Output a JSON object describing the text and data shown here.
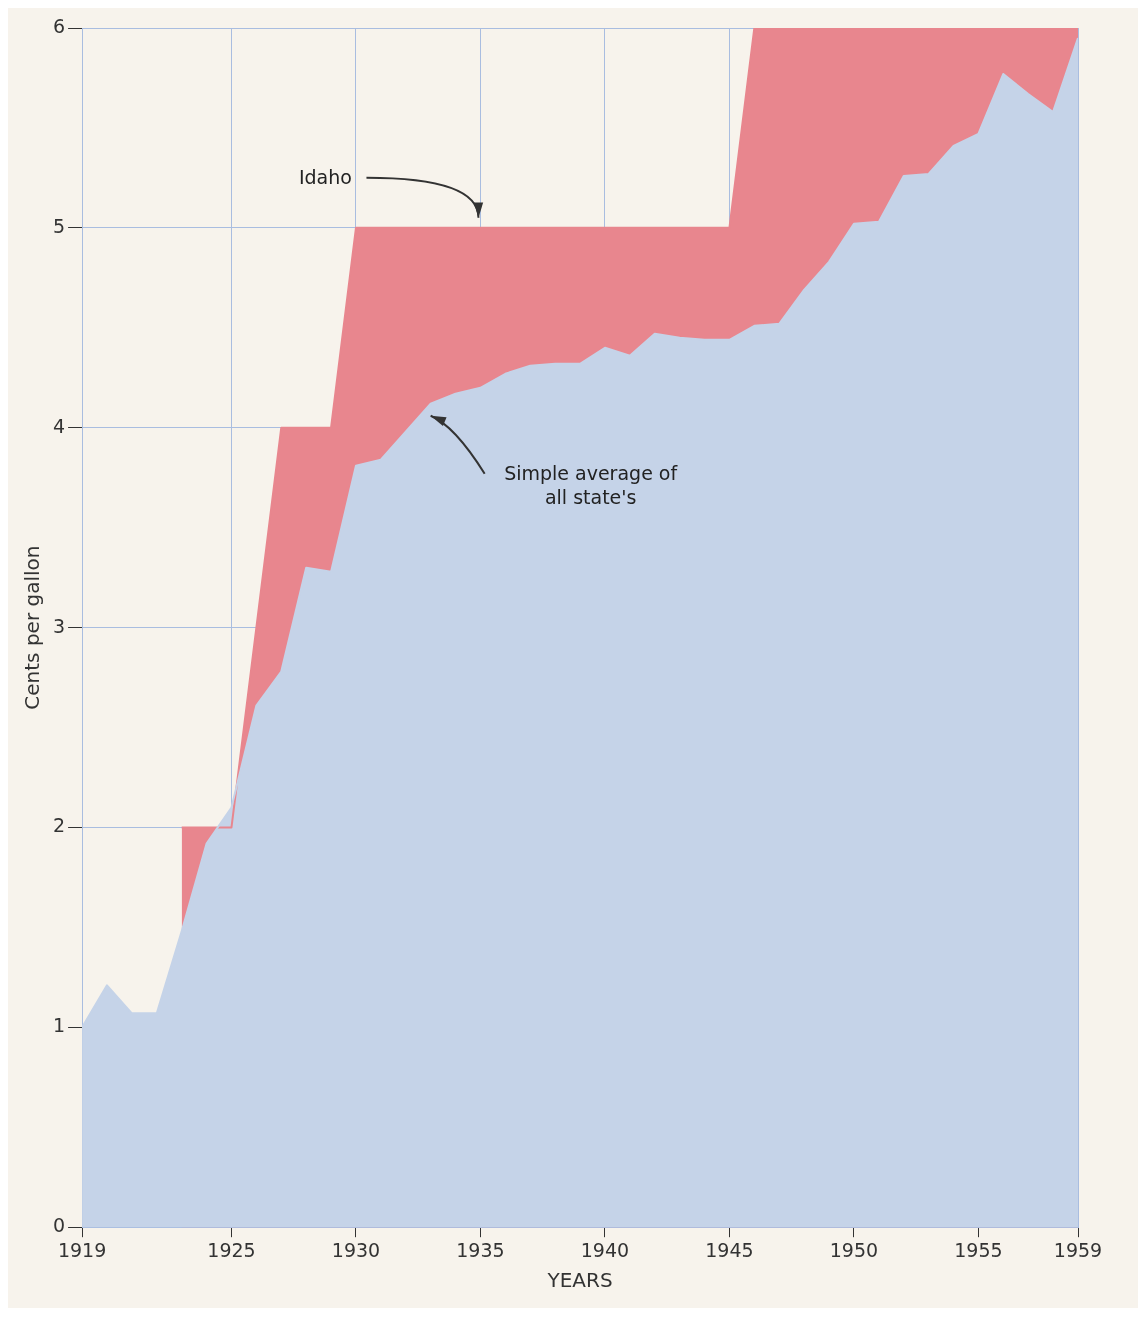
{
  "chart_data": {
    "type": "area",
    "xlabel": "YEARS",
    "ylabel": "Cents per gallon",
    "xlim": [
      1919,
      1959
    ],
    "ylim": [
      0,
      6
    ],
    "xticks": [
      1919,
      1925,
      1930,
      1935,
      1940,
      1945,
      1950,
      1955,
      1959
    ],
    "yticks": [
      0,
      1,
      2,
      3,
      4,
      5,
      6
    ],
    "grid": true,
    "legend": false,
    "series": [
      {
        "name": "Idaho",
        "color": "#e8868e",
        "x": [
          1923,
          1924,
          1925,
          1926,
          1927,
          1928,
          1929,
          1930,
          1931,
          1932,
          1933,
          1934,
          1935,
          1936,
          1937,
          1938,
          1939,
          1940,
          1941,
          1942,
          1943,
          1944,
          1945,
          1946,
          1947,
          1948,
          1949,
          1950,
          1951,
          1952,
          1953,
          1954,
          1955,
          1956,
          1957,
          1958,
          1959
        ],
        "values": [
          2,
          2,
          2,
          3,
          4,
          4,
          4,
          5,
          5,
          5,
          5,
          5,
          5,
          5,
          5,
          5,
          5,
          5,
          5,
          5,
          5,
          5,
          5,
          6,
          6,
          6,
          6,
          6,
          6,
          6,
          6,
          6,
          6,
          6,
          6,
          6,
          6
        ]
      },
      {
        "name": "Simple average of all state's",
        "color": "#c5d3e8",
        "x": [
          1919,
          1920,
          1921,
          1922,
          1923,
          1924,
          1925,
          1926,
          1927,
          1928,
          1929,
          1930,
          1931,
          1932,
          1933,
          1934,
          1935,
          1936,
          1937,
          1938,
          1939,
          1940,
          1941,
          1942,
          1943,
          1944,
          1945,
          1946,
          1947,
          1948,
          1949,
          1950,
          1951,
          1952,
          1953,
          1954,
          1955,
          1956,
          1957,
          1958,
          1959
        ],
        "values": [
          1.0,
          1.21,
          1.07,
          1.07,
          1.48,
          1.92,
          2.1,
          2.61,
          2.78,
          3.3,
          3.28,
          3.81,
          3.84,
          3.98,
          4.12,
          4.17,
          4.2,
          4.27,
          4.31,
          4.32,
          4.32,
          4.4,
          4.36,
          4.47,
          4.45,
          4.44,
          4.44,
          4.51,
          4.52,
          4.69,
          4.83,
          5.02,
          5.03,
          5.26,
          5.27,
          5.41,
          5.47,
          5.77,
          5.67,
          5.58,
          5.95
        ]
      }
    ]
  }
}
